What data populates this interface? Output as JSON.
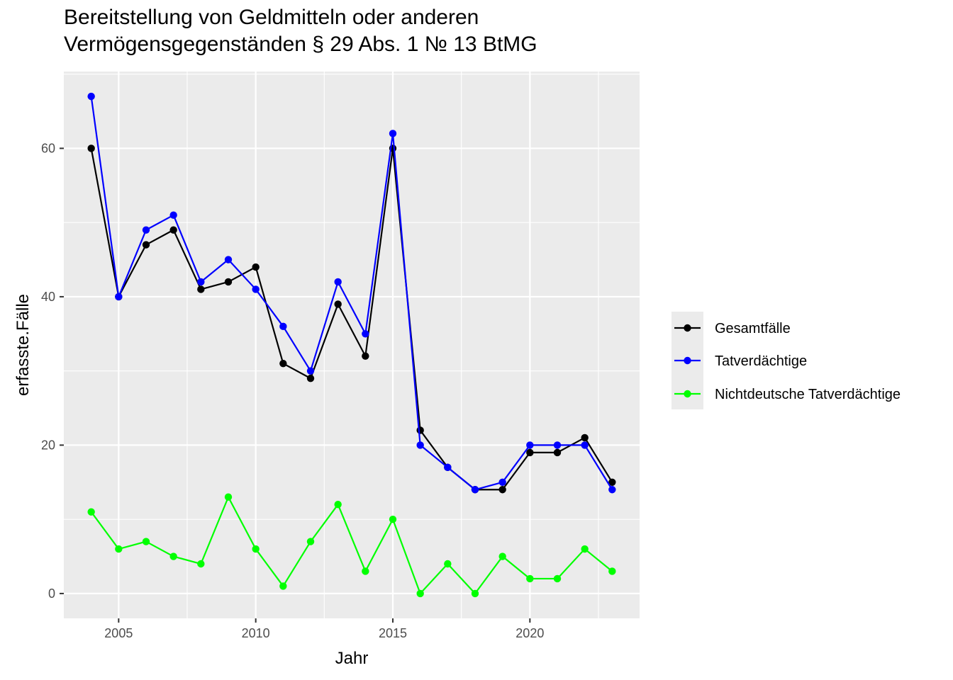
{
  "chart_data": {
    "type": "line",
    "title": "Bereitstellung von Geldmitteln oder anderen Vermögensgegenständen § 29 Abs. 1 № 13 BtMG",
    "title_lines": [
      "Bereitstellung von Geldmitteln oder anderen",
      "Vermögensgegenständen § 29 Abs. 1 № 13 BtMG"
    ],
    "xlabel": "Jahr",
    "ylabel": "erfasste.Fälle",
    "xlim": [
      2003,
      2024
    ],
    "ylim": [
      -3.35,
      70.35
    ],
    "x_ticks": [
      2005,
      2010,
      2015,
      2020
    ],
    "y_ticks": [
      0,
      20,
      40,
      60
    ],
    "grid": true,
    "legend_position": "right",
    "x": [
      2004,
      2005,
      2006,
      2007,
      2008,
      2009,
      2010,
      2011,
      2012,
      2013,
      2014,
      2015,
      2016,
      2017,
      2018,
      2019,
      2020,
      2021,
      2022,
      2023
    ],
    "series": [
      {
        "name": "Gesamtfälle",
        "color": "#000000",
        "values": [
          60,
          40,
          47,
          49,
          41,
          42,
          44,
          31,
          29,
          39,
          32,
          60,
          22,
          17,
          14,
          14,
          19,
          19,
          21,
          15
        ]
      },
      {
        "name": "Tatverdächtige",
        "color": "#0000ff",
        "values": [
          67,
          40,
          49,
          51,
          42,
          45,
          41,
          36,
          30,
          42,
          35,
          62,
          20,
          17,
          14,
          15,
          20,
          20,
          20,
          14
        ]
      },
      {
        "name": "Nichtdeutsche Tatverdächtige",
        "color": "#00ff00",
        "values": [
          11,
          6,
          7,
          5,
          4,
          13,
          6,
          1,
          7,
          12,
          3,
          10,
          0,
          4,
          0,
          5,
          2,
          2,
          6,
          3
        ]
      }
    ]
  }
}
